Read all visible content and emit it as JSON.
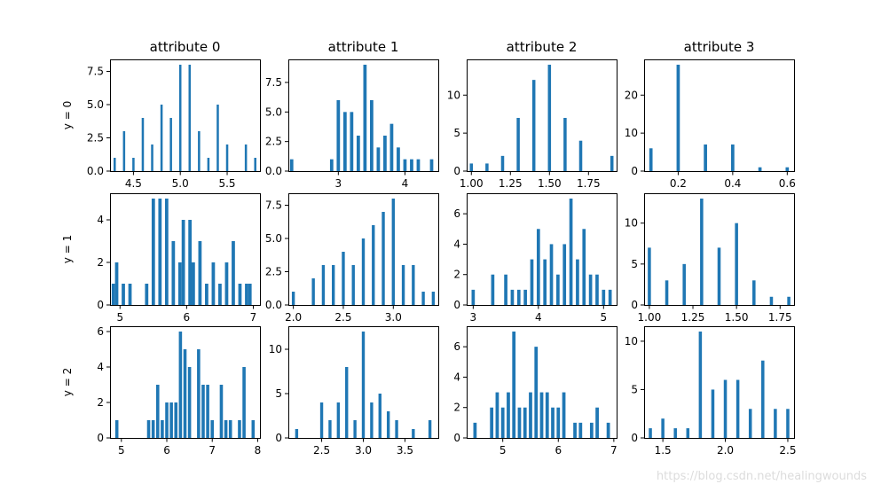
{
  "bar_color": "#1f77b4",
  "watermark": "https://blog.csdn.net/healingwounds",
  "row_labels": [
    "y = 0",
    "y = 1",
    "y = 2"
  ],
  "col_titles": [
    "attribute 0",
    "attribute 1",
    "attribute 2",
    "attribute 3"
  ],
  "chart_data": [
    {
      "type": "bar",
      "title": "attribute 0",
      "ylabel": "y = 0",
      "xlim": [
        4.25,
        5.85
      ],
      "ylim": [
        0,
        8.4
      ],
      "xticks": [
        4.5,
        5.0,
        5.5
      ],
      "xtick_labels": [
        "4.5",
        "5.0",
        "5.5"
      ],
      "yticks": [
        0,
        2.5,
        5.0,
        7.5
      ],
      "ytick_labels": [
        "0.0",
        "2.5",
        "5.0",
        "7.5"
      ],
      "bin_width": 0.024,
      "bars": [
        {
          "x": 4.3,
          "v": 1
        },
        {
          "x": 4.4,
          "v": 3
        },
        {
          "x": 4.5,
          "v": 1
        },
        {
          "x": 4.6,
          "v": 4
        },
        {
          "x": 4.7,
          "v": 2
        },
        {
          "x": 4.8,
          "v": 5
        },
        {
          "x": 4.9,
          "v": 4
        },
        {
          "x": 5.0,
          "v": 8
        },
        {
          "x": 5.1,
          "v": 8
        },
        {
          "x": 5.2,
          "v": 3
        },
        {
          "x": 5.3,
          "v": 1
        },
        {
          "x": 5.4,
          "v": 5
        },
        {
          "x": 5.5,
          "v": 2
        },
        {
          "x": 5.7,
          "v": 2
        },
        {
          "x": 5.8,
          "v": 1
        }
      ]
    },
    {
      "type": "bar",
      "title": "attribute 1",
      "ylabel": "",
      "xlim": [
        2.25,
        4.5
      ],
      "ylim": [
        0,
        9.45
      ],
      "xticks": [
        3,
        4
      ],
      "xtick_labels": [
        "3",
        "4"
      ],
      "yticks": [
        0,
        2.5,
        5.0,
        7.5
      ],
      "ytick_labels": [
        "0.0",
        "2.5",
        "5.0",
        "7.5"
      ],
      "bin_width": 0.05,
      "bars": [
        {
          "x": 2.3,
          "v": 1
        },
        {
          "x": 2.9,
          "v": 1
        },
        {
          "x": 3.0,
          "v": 6
        },
        {
          "x": 3.1,
          "v": 5
        },
        {
          "x": 3.2,
          "v": 5
        },
        {
          "x": 3.3,
          "v": 3
        },
        {
          "x": 3.4,
          "v": 9
        },
        {
          "x": 3.5,
          "v": 6
        },
        {
          "x": 3.6,
          "v": 2
        },
        {
          "x": 3.7,
          "v": 3
        },
        {
          "x": 3.8,
          "v": 4
        },
        {
          "x": 3.9,
          "v": 2
        },
        {
          "x": 4.0,
          "v": 1
        },
        {
          "x": 4.1,
          "v": 1
        },
        {
          "x": 4.2,
          "v": 1
        },
        {
          "x": 4.4,
          "v": 1
        }
      ]
    },
    {
      "type": "bar",
      "title": "attribute 2",
      "ylabel": "",
      "xlim": [
        0.97,
        1.93
      ],
      "ylim": [
        0,
        14.7
      ],
      "xticks": [
        1.0,
        1.25,
        1.5,
        1.75
      ],
      "xtick_labels": [
        "1.00",
        "1.25",
        "1.50",
        "1.75"
      ],
      "yticks": [
        0,
        5,
        10
      ],
      "ytick_labels": [
        "0",
        "5",
        "10"
      ],
      "bin_width": 0.02,
      "bars": [
        {
          "x": 1.0,
          "v": 1
        },
        {
          "x": 1.1,
          "v": 1
        },
        {
          "x": 1.2,
          "v": 2
        },
        {
          "x": 1.3,
          "v": 7
        },
        {
          "x": 1.4,
          "v": 12
        },
        {
          "x": 1.5,
          "v": 14
        },
        {
          "x": 1.6,
          "v": 7
        },
        {
          "x": 1.7,
          "v": 4
        },
        {
          "x": 1.9,
          "v": 2
        }
      ]
    },
    {
      "type": "bar",
      "title": "attribute 3",
      "ylabel": "",
      "xlim": [
        0.075,
        0.625
      ],
      "ylim": [
        0,
        29.4
      ],
      "xticks": [
        0.2,
        0.4,
        0.6
      ],
      "xtick_labels": [
        "0.2",
        "0.4",
        "0.6"
      ],
      "yticks": [
        0,
        10,
        20
      ],
      "ytick_labels": [
        "0",
        "10",
        "20"
      ],
      "bin_width": 0.012,
      "bars": [
        {
          "x": 0.1,
          "v": 6
        },
        {
          "x": 0.2,
          "v": 28
        },
        {
          "x": 0.3,
          "v": 7
        },
        {
          "x": 0.4,
          "v": 7
        },
        {
          "x": 0.5,
          "v": 1
        },
        {
          "x": 0.6,
          "v": 1
        }
      ]
    },
    {
      "type": "bar",
      "title": "",
      "ylabel": "y = 1",
      "xlim": [
        4.85,
        7.1
      ],
      "ylim": [
        0,
        5.25
      ],
      "xticks": [
        5,
        6,
        7
      ],
      "xtick_labels": [
        "5",
        "6",
        "7"
      ],
      "yticks": [
        0,
        2,
        4
      ],
      "ytick_labels": [
        "0",
        "2",
        "4"
      ],
      "bin_width": 0.05,
      "bars": [
        {
          "x": 4.9,
          "v": 1
        },
        {
          "x": 4.95,
          "v": 2
        },
        {
          "x": 5.05,
          "v": 1
        },
        {
          "x": 5.15,
          "v": 1
        },
        {
          "x": 5.4,
          "v": 1
        },
        {
          "x": 5.5,
          "v": 5
        },
        {
          "x": 5.6,
          "v": 5
        },
        {
          "x": 5.7,
          "v": 5
        },
        {
          "x": 5.8,
          "v": 3
        },
        {
          "x": 5.9,
          "v": 2
        },
        {
          "x": 5.95,
          "v": 4
        },
        {
          "x": 6.05,
          "v": 4
        },
        {
          "x": 6.1,
          "v": 2
        },
        {
          "x": 6.2,
          "v": 3
        },
        {
          "x": 6.3,
          "v": 1
        },
        {
          "x": 6.4,
          "v": 2
        },
        {
          "x": 6.5,
          "v": 1
        },
        {
          "x": 6.6,
          "v": 2
        },
        {
          "x": 6.7,
          "v": 3
        },
        {
          "x": 6.8,
          "v": 1
        },
        {
          "x": 6.9,
          "v": 1
        },
        {
          "x": 6.95,
          "v": 1
        }
      ]
    },
    {
      "type": "bar",
      "title": "",
      "ylabel": "",
      "xlim": [
        1.95,
        3.45
      ],
      "ylim": [
        0,
        8.4
      ],
      "xticks": [
        2.0,
        2.5,
        3.0
      ],
      "xtick_labels": [
        "2.0",
        "2.5",
        "3.0"
      ],
      "yticks": [
        0,
        2.5,
        5.0,
        7.5
      ],
      "ytick_labels": [
        "0.0",
        "2.5",
        "5.0",
        "7.5"
      ],
      "bin_width": 0.03,
      "bars": [
        {
          "x": 2.0,
          "v": 1
        },
        {
          "x": 2.2,
          "v": 2
        },
        {
          "x": 2.3,
          "v": 3
        },
        {
          "x": 2.4,
          "v": 3
        },
        {
          "x": 2.5,
          "v": 4
        },
        {
          "x": 2.6,
          "v": 3
        },
        {
          "x": 2.7,
          "v": 5
        },
        {
          "x": 2.8,
          "v": 6
        },
        {
          "x": 2.9,
          "v": 7
        },
        {
          "x": 3.0,
          "v": 8
        },
        {
          "x": 3.1,
          "v": 3
        },
        {
          "x": 3.2,
          "v": 3
        },
        {
          "x": 3.3,
          "v": 1
        },
        {
          "x": 3.4,
          "v": 1
        }
      ]
    },
    {
      "type": "bar",
      "title": "",
      "ylabel": "",
      "xlim": [
        2.9,
        5.2
      ],
      "ylim": [
        0,
        7.35
      ],
      "xticks": [
        3,
        4,
        5
      ],
      "xtick_labels": [
        "3",
        "4",
        "5"
      ],
      "yticks": [
        0,
        2,
        4,
        6
      ],
      "ytick_labels": [
        "0",
        "2",
        "4",
        "6"
      ],
      "bin_width": 0.05,
      "bars": [
        {
          "x": 3.0,
          "v": 1
        },
        {
          "x": 3.3,
          "v": 2
        },
        {
          "x": 3.5,
          "v": 2
        },
        {
          "x": 3.6,
          "v": 1
        },
        {
          "x": 3.7,
          "v": 1
        },
        {
          "x": 3.8,
          "v": 1
        },
        {
          "x": 3.9,
          "v": 3
        },
        {
          "x": 4.0,
          "v": 5
        },
        {
          "x": 4.1,
          "v": 3
        },
        {
          "x": 4.2,
          "v": 4
        },
        {
          "x": 4.3,
          "v": 2
        },
        {
          "x": 4.4,
          "v": 4
        },
        {
          "x": 4.5,
          "v": 7
        },
        {
          "x": 4.6,
          "v": 3
        },
        {
          "x": 4.7,
          "v": 5
        },
        {
          "x": 4.8,
          "v": 2
        },
        {
          "x": 4.9,
          "v": 2
        },
        {
          "x": 5.0,
          "v": 1
        },
        {
          "x": 5.1,
          "v": 1
        }
      ]
    },
    {
      "type": "bar",
      "title": "",
      "ylabel": "",
      "xlim": [
        0.97,
        1.83
      ],
      "ylim": [
        0,
        13.65
      ],
      "xticks": [
        1.0,
        1.25,
        1.5,
        1.75
      ],
      "xtick_labels": [
        "1.00",
        "1.25",
        "1.50",
        "1.75"
      ],
      "yticks": [
        0,
        5,
        10
      ],
      "ytick_labels": [
        "0",
        "5",
        "10"
      ],
      "bin_width": 0.018,
      "bars": [
        {
          "x": 1.0,
          "v": 7
        },
        {
          "x": 1.1,
          "v": 3
        },
        {
          "x": 1.2,
          "v": 5
        },
        {
          "x": 1.3,
          "v": 13
        },
        {
          "x": 1.4,
          "v": 7
        },
        {
          "x": 1.5,
          "v": 10
        },
        {
          "x": 1.6,
          "v": 3
        },
        {
          "x": 1.7,
          "v": 1
        },
        {
          "x": 1.8,
          "v": 1
        }
      ]
    },
    {
      "type": "bar",
      "title": "",
      "ylabel": "y = 2",
      "xlim": [
        4.75,
        8.05
      ],
      "ylim": [
        0,
        6.3
      ],
      "xticks": [
        5,
        6,
        7,
        8
      ],
      "xtick_labels": [
        "5",
        "6",
        "7",
        "8"
      ],
      "yticks": [
        0,
        2,
        4,
        6
      ],
      "ytick_labels": [
        "0",
        "2",
        "4",
        "6"
      ],
      "bin_width": 0.07,
      "bars": [
        {
          "x": 4.9,
          "v": 1
        },
        {
          "x": 5.6,
          "v": 1
        },
        {
          "x": 5.7,
          "v": 1
        },
        {
          "x": 5.8,
          "v": 3
        },
        {
          "x": 5.9,
          "v": 1
        },
        {
          "x": 6.0,
          "v": 2
        },
        {
          "x": 6.1,
          "v": 2
        },
        {
          "x": 6.2,
          "v": 2
        },
        {
          "x": 6.3,
          "v": 6
        },
        {
          "x": 6.4,
          "v": 5
        },
        {
          "x": 6.5,
          "v": 4
        },
        {
          "x": 6.6,
          "v": 0
        },
        {
          "x": 6.7,
          "v": 5
        },
        {
          "x": 6.8,
          "v": 3
        },
        {
          "x": 6.9,
          "v": 3
        },
        {
          "x": 7.0,
          "v": 1
        },
        {
          "x": 7.2,
          "v": 3
        },
        {
          "x": 7.3,
          "v": 1
        },
        {
          "x": 7.4,
          "v": 1
        },
        {
          "x": 7.6,
          "v": 1
        },
        {
          "x": 7.7,
          "v": 4
        },
        {
          "x": 7.9,
          "v": 1
        }
      ]
    },
    {
      "type": "bar",
      "title": "",
      "ylabel": "",
      "xlim": [
        2.1,
        3.9
      ],
      "ylim": [
        0,
        12.6
      ],
      "xticks": [
        2.5,
        3.0,
        3.5
      ],
      "xtick_labels": [
        "2.5",
        "3.0",
        "3.5"
      ],
      "yticks": [
        0,
        5,
        10
      ],
      "ytick_labels": [
        "0",
        "5",
        "10"
      ],
      "bin_width": 0.036,
      "bars": [
        {
          "x": 2.2,
          "v": 1
        },
        {
          "x": 2.5,
          "v": 4
        },
        {
          "x": 2.6,
          "v": 2
        },
        {
          "x": 2.7,
          "v": 4
        },
        {
          "x": 2.8,
          "v": 8
        },
        {
          "x": 2.9,
          "v": 2
        },
        {
          "x": 3.0,
          "v": 12
        },
        {
          "x": 3.1,
          "v": 4
        },
        {
          "x": 3.2,
          "v": 5
        },
        {
          "x": 3.3,
          "v": 3
        },
        {
          "x": 3.4,
          "v": 2
        },
        {
          "x": 3.6,
          "v": 1
        },
        {
          "x": 3.8,
          "v": 2
        }
      ]
    },
    {
      "type": "bar",
      "title": "",
      "ylabel": "",
      "xlim": [
        4.35,
        7.05
      ],
      "ylim": [
        0,
        7.35
      ],
      "xticks": [
        5,
        6,
        7
      ],
      "xtick_labels": [
        "5",
        "6",
        "7"
      ],
      "yticks": [
        0,
        2,
        4,
        6
      ],
      "ytick_labels": [
        "0",
        "2",
        "4",
        "6"
      ],
      "bin_width": 0.06,
      "bars": [
        {
          "x": 4.5,
          "v": 1
        },
        {
          "x": 4.8,
          "v": 2
        },
        {
          "x": 4.9,
          "v": 3
        },
        {
          "x": 5.0,
          "v": 2
        },
        {
          "x": 5.1,
          "v": 3
        },
        {
          "x": 5.2,
          "v": 7
        },
        {
          "x": 5.3,
          "v": 2
        },
        {
          "x": 5.4,
          "v": 2
        },
        {
          "x": 5.5,
          "v": 3
        },
        {
          "x": 5.6,
          "v": 6
        },
        {
          "x": 5.7,
          "v": 3
        },
        {
          "x": 5.8,
          "v": 3
        },
        {
          "x": 5.9,
          "v": 2
        },
        {
          "x": 6.0,
          "v": 2
        },
        {
          "x": 6.1,
          "v": 3
        },
        {
          "x": 6.3,
          "v": 1
        },
        {
          "x": 6.4,
          "v": 1
        },
        {
          "x": 6.6,
          "v": 1
        },
        {
          "x": 6.7,
          "v": 2
        },
        {
          "x": 6.9,
          "v": 1
        }
      ]
    },
    {
      "type": "bar",
      "title": "",
      "ylabel": "",
      "xlim": [
        1.35,
        2.55
      ],
      "ylim": [
        0,
        11.55
      ],
      "xticks": [
        1.5,
        2.0,
        2.5
      ],
      "xtick_labels": [
        "1.5",
        "2.0",
        "2.5"
      ],
      "yticks": [
        0,
        5,
        10
      ],
      "ytick_labels": [
        "0",
        "5",
        "10"
      ],
      "bin_width": 0.025,
      "bars": [
        {
          "x": 1.4,
          "v": 1
        },
        {
          "x": 1.5,
          "v": 2
        },
        {
          "x": 1.6,
          "v": 1
        },
        {
          "x": 1.7,
          "v": 1
        },
        {
          "x": 1.8,
          "v": 11
        },
        {
          "x": 1.9,
          "v": 5
        },
        {
          "x": 2.0,
          "v": 6
        },
        {
          "x": 2.1,
          "v": 6
        },
        {
          "x": 2.2,
          "v": 3
        },
        {
          "x": 2.3,
          "v": 8
        },
        {
          "x": 2.4,
          "v": 3
        },
        {
          "x": 2.5,
          "v": 3
        }
      ]
    }
  ]
}
